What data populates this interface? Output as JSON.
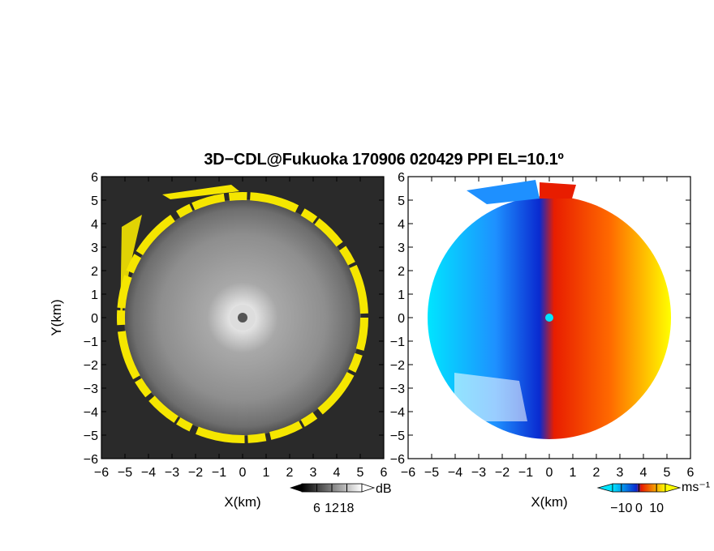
{
  "title": "3D−CDL@Fukuoka 170906 020429 PPI EL=10.1º",
  "chart_data": [
    {
      "type": "heatmap",
      "panel": "reflectivity",
      "xlabel": "X(km)",
      "ylabel": "Y(km)",
      "xlim": [
        -6,
        6
      ],
      "ylim": [
        -6,
        6
      ],
      "xticks": [
        "−6",
        "−5",
        "−4",
        "−3",
        "−2",
        "−1",
        "0",
        "1",
        "2",
        "3",
        "4",
        "5",
        "6"
      ],
      "yticks": [
        "6",
        "5",
        "4",
        "3",
        "2",
        "1",
        "0",
        "−1",
        "−2",
        "−3",
        "−4",
        "−5",
        "−6"
      ],
      "colorbar": {
        "unit": "dB",
        "ticks": [
          "6",
          "12",
          "18"
        ],
        "range": [
          0,
          24
        ],
        "colormap": "grayscale"
      },
      "scan_radius_km": 5.7,
      "ring_color": "#f5e600",
      "background_color": "#2a2a2a"
    },
    {
      "type": "heatmap",
      "panel": "doppler-velocity",
      "xlabel": "X(km)",
      "ylabel": "",
      "xlim": [
        -6,
        6
      ],
      "ylim": [
        -6,
        6
      ],
      "xticks": [
        "−6",
        "−5",
        "−4",
        "−3",
        "−2",
        "−1",
        "0",
        "1",
        "2",
        "3",
        "4",
        "5",
        "6"
      ],
      "yticks": [
        "6",
        "5",
        "4",
        "3",
        "2",
        "1",
        "0",
        "−1",
        "−2",
        "−3",
        "−4",
        "−5",
        "−6"
      ],
      "colorbar": {
        "unit": "ms⁻¹",
        "ticks": [
          "−10",
          "0",
          "10"
        ],
        "range": [
          -15,
          15
        ],
        "colors": [
          "#00e5ff",
          "#0a2ad0",
          "#e81d00",
          "#ffff00"
        ]
      },
      "scan_radius_km": 5.7
    }
  ]
}
